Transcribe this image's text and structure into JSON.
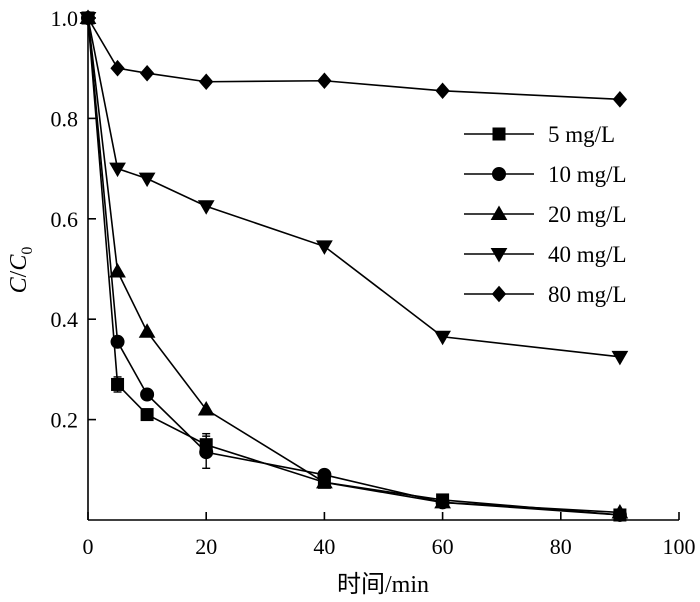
{
  "chart_data": {
    "type": "line",
    "xlabel": "时间/min",
    "ylabel_main": "C",
    "ylabel_sep": "/",
    "ylabel_denom": "C",
    "ylabel_sub": "0",
    "xlim": [
      0,
      100
    ],
    "ylim": [
      0,
      1.0
    ],
    "x_ticks": [
      0,
      20,
      40,
      60,
      80,
      100
    ],
    "x_tick_labels": [
      "0",
      "20",
      "40",
      "60",
      "80",
      "100"
    ],
    "y_ticks": [
      0.2,
      0.4,
      0.6,
      0.8,
      1.0
    ],
    "y_tick_labels": [
      "0.2",
      "0.4",
      "0.6",
      "0.8",
      "1.0"
    ],
    "legend_position": "right",
    "grid": false,
    "series": [
      {
        "name": "5 mg/L",
        "marker": "square",
        "x": [
          0,
          5,
          10,
          20,
          40,
          60,
          90
        ],
        "y": [
          1.0,
          0.27,
          0.21,
          0.15,
          0.075,
          0.04,
          0.01
        ],
        "err": [
          0,
          0.015,
          0,
          0.022,
          0,
          0,
          0
        ]
      },
      {
        "name": "10 mg/L",
        "marker": "circle",
        "x": [
          0,
          5,
          10,
          20,
          40,
          60,
          90
        ],
        "y": [
          1.0,
          0.355,
          0.25,
          0.135,
          0.09,
          0.035,
          0.01
        ],
        "err": [
          0,
          0,
          0,
          0.032,
          0,
          0,
          0
        ]
      },
      {
        "name": "20 mg/L",
        "marker": "triangle-up",
        "x": [
          0,
          5,
          10,
          20,
          40,
          60,
          90
        ],
        "y": [
          1.0,
          0.495,
          0.375,
          0.22,
          0.075,
          0.035,
          0.015
        ],
        "err": [
          0,
          0,
          0,
          0,
          0,
          0,
          0
        ]
      },
      {
        "name": "40 mg/L",
        "marker": "triangle-down",
        "x": [
          0,
          5,
          10,
          20,
          40,
          60,
          90
        ],
        "y": [
          1.0,
          0.7,
          0.68,
          0.625,
          0.545,
          0.365,
          0.325
        ],
        "err": [
          0,
          0,
          0,
          0,
          0,
          0,
          0
        ]
      },
      {
        "name": "80 mg/L",
        "marker": "diamond",
        "x": [
          0,
          5,
          10,
          20,
          40,
          60,
          90
        ],
        "y": [
          1.0,
          0.9,
          0.89,
          0.873,
          0.875,
          0.855,
          0.838
        ],
        "err": [
          0,
          0,
          0,
          0,
          0,
          0,
          0
        ]
      }
    ]
  }
}
